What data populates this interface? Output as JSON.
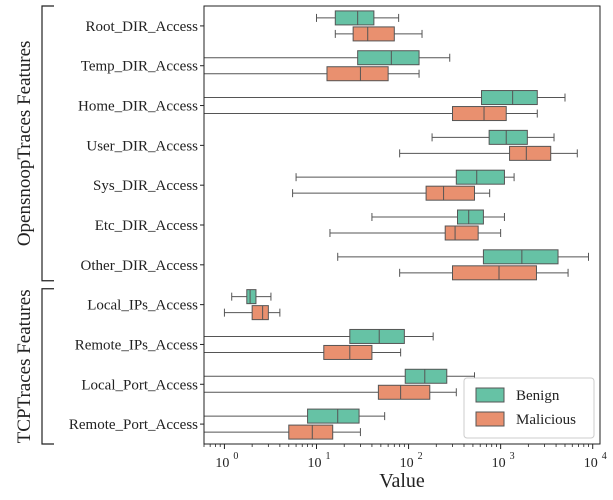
{
  "chart_data": {
    "type": "boxplot",
    "x_scale": "log",
    "xlim": [
      0.6,
      12000
    ],
    "xlabel": "Value",
    "x_ticks": [
      1,
      10,
      100,
      1000,
      10000
    ],
    "x_tick_labels": [
      {
        "base": "10",
        "exp": "0"
      },
      {
        "base": "10",
        "exp": "1"
      },
      {
        "base": "10",
        "exp": "2"
      },
      {
        "base": "10",
        "exp": "3"
      },
      {
        "base": "10",
        "exp": "4"
      }
    ],
    "legend": {
      "placement": "bottom-right",
      "entries": [
        "Benign",
        "Malicious"
      ]
    },
    "series_colors": {
      "Benign": "#66c2a5",
      "Malicious": "#e9906f"
    },
    "groups": [
      {
        "label": "OpensnoopTraces Features",
        "categories": [
          "Root_DIR_Access",
          "Temp_DIR_Access",
          "Home_DIR_Access",
          "User_DIR_Access",
          "Sys_DIR_Access",
          "Etc_DIR_Access",
          "Other_DIR_Access"
        ]
      },
      {
        "label": "TCPTraces Features",
        "categories": [
          "Local_IPs_Access",
          "Remote_IPs_Access",
          "Local_Port_Access",
          "Remote_Port_Access"
        ]
      }
    ],
    "categories": [
      "Root_DIR_Access",
      "Temp_DIR_Access",
      "Home_DIR_Access",
      "User_DIR_Access",
      "Sys_DIR_Access",
      "Etc_DIR_Access",
      "Other_DIR_Access",
      "Local_IPs_Access",
      "Remote_IPs_Access",
      "Local_Port_Access",
      "Remote_Port_Access"
    ],
    "series": [
      {
        "name": "Benign",
        "boxes": [
          {
            "whislo": 10,
            "q1": 16,
            "med": 28,
            "q3": 42,
            "whishi": 78
          },
          {
            "whislo": 0.6,
            "q1": 28,
            "med": 65,
            "q3": 130,
            "whishi": 280
          },
          {
            "whislo": 0.6,
            "q1": 620,
            "med": 1350,
            "q3": 2500,
            "whishi": 5000
          },
          {
            "whislo": 180,
            "q1": 750,
            "med": 1150,
            "q3": 1950,
            "whishi": 3800
          },
          {
            "whislo": 6,
            "q1": 330,
            "med": 550,
            "q3": 1100,
            "whishi": 1400
          },
          {
            "whislo": 40,
            "q1": 340,
            "med": 450,
            "q3": 650,
            "whishi": 1100
          },
          {
            "whislo": 17,
            "q1": 650,
            "med": 1700,
            "q3": 4200,
            "whishi": 9000
          },
          {
            "whislo": 1.2,
            "q1": 1.75,
            "med": 1.9,
            "q3": 2.2,
            "whishi": 3.2
          },
          {
            "whislo": 0.6,
            "q1": 23,
            "med": 48,
            "q3": 90,
            "whishi": 185
          },
          {
            "whislo": 0.6,
            "q1": 92,
            "med": 150,
            "q3": 260,
            "whishi": 520
          },
          {
            "whislo": 0.6,
            "q1": 8,
            "med": 17,
            "q3": 29,
            "whishi": 55
          }
        ]
      },
      {
        "name": "Malicious",
        "boxes": [
          {
            "whislo": 16,
            "q1": 25,
            "med": 36,
            "q3": 70,
            "whishi": 140
          },
          {
            "whislo": 0.6,
            "q1": 13,
            "med": 30,
            "q3": 60,
            "whishi": 130
          },
          {
            "whislo": 0.6,
            "q1": 300,
            "med": 660,
            "q3": 1150,
            "whishi": 2500
          },
          {
            "whislo": 80,
            "q1": 1250,
            "med": 1900,
            "q3": 3500,
            "whishi": 6800
          },
          {
            "whislo": 5.5,
            "q1": 155,
            "med": 240,
            "q3": 520,
            "whishi": 760
          },
          {
            "whislo": 14,
            "q1": 250,
            "med": 320,
            "q3": 570,
            "whishi": 1000
          },
          {
            "whislo": 80,
            "q1": 300,
            "med": 960,
            "q3": 2450,
            "whishi": 5400
          },
          {
            "whislo": 1.0,
            "q1": 2.0,
            "med": 2.6,
            "q3": 3.0,
            "whishi": 4.0
          },
          {
            "whislo": 0.6,
            "q1": 12,
            "med": 23,
            "q3": 40,
            "whishi": 82
          },
          {
            "whislo": 0.6,
            "q1": 47,
            "med": 82,
            "q3": 170,
            "whishi": 330
          },
          {
            "whislo": 0.6,
            "q1": 5,
            "med": 9,
            "q3": 15,
            "whishi": 30
          }
        ]
      }
    ]
  }
}
